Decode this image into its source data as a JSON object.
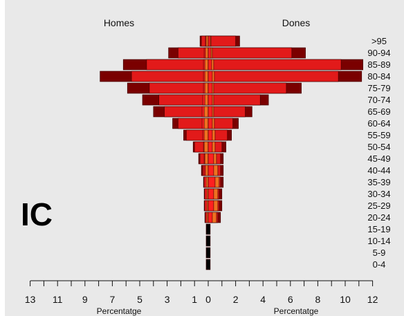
{
  "panel_label": "IC",
  "colors": {
    "background": "#e9e9e9",
    "darkest": "#7a0000",
    "dark": "#a80000",
    "red": "#e21a1a",
    "inner_red": "#ff2020",
    "orange": "#f07020",
    "black": "#000000"
  },
  "chart_data": {
    "type": "bar",
    "orientation": "horizontal-pyramid",
    "left_title": "Homes",
    "right_title": "Dones",
    "xlabel_left": "Percentatge",
    "xlabel_right": "Percentatge",
    "categories": [
      ">95",
      "90-94",
      "85-89",
      "80-84",
      "75-79",
      "70-74",
      "65-69",
      "60-64",
      "55-59",
      "50-54",
      "45-49",
      "40-44",
      "35-39",
      "30-34",
      "25-29",
      "20-24",
      "15-19",
      "10-14",
      "5-9",
      "0-4"
    ],
    "xlim": [
      -13,
      12
    ],
    "left_ticks": [
      "13",
      "11",
      "9",
      "7",
      "5",
      "3",
      "1"
    ],
    "right_ticks": [
      "0",
      "2",
      "4",
      "6",
      "8",
      "10",
      "12"
    ],
    "series_note": "Nested segments per age group; values are cumulative extents in % (left = Homes, right = Dones).",
    "homes": {
      "total": [
        0.6,
        2.9,
        6.2,
        7.9,
        5.9,
        4.8,
        4.0,
        2.6,
        1.8,
        1.1,
        0.7,
        0.5,
        0.35,
        0.3,
        0.3,
        0.25,
        0.15,
        0.15,
        0.15,
        0.15
      ],
      "dark": [
        0.5,
        2.2,
        4.5,
        5.6,
        4.3,
        3.6,
        3.2,
        2.2,
        1.6,
        1.0,
        0.6,
        0.4,
        0.3,
        0.25,
        0.25,
        0.2,
        0,
        0,
        0,
        0
      ],
      "inner": [
        0.2,
        0.3,
        0.35,
        0.35,
        0.35,
        0.4,
        0.45,
        0.45,
        0.4,
        0.35,
        0.3,
        0.3,
        0.3,
        0.25,
        0.25,
        0.2,
        0,
        0,
        0,
        0
      ],
      "orange": [
        0.15,
        0.2,
        0.25,
        0.25,
        0.25,
        0.25,
        0.3,
        0.3,
        0.3,
        0.3,
        0.25,
        0.2,
        0.15,
        0.1,
        0.1,
        0.1,
        0,
        0,
        0,
        0
      ]
    },
    "dones": {
      "total": [
        2.3,
        7.1,
        11.3,
        11.2,
        6.8,
        4.4,
        3.2,
        2.2,
        1.7,
        1.3,
        1.1,
        1.1,
        1.1,
        1.0,
        1.0,
        0.9,
        0.15,
        0.15,
        0.15,
        0.15
      ],
      "dark": [
        2.0,
        6.1,
        9.7,
        9.5,
        5.7,
        3.8,
        2.7,
        1.8,
        1.4,
        1.0,
        0.9,
        0.9,
        0.9,
        0.8,
        0.8,
        0.7,
        0,
        0,
        0,
        0
      ],
      "inner": [
        0.2,
        0.3,
        0.4,
        0.45,
        0.4,
        0.4,
        0.4,
        0.45,
        0.5,
        0.5,
        0.6,
        0.7,
        0.8,
        0.7,
        0.7,
        0.6,
        0,
        0,
        0,
        0
      ],
      "orange": [
        0.15,
        0.2,
        0.25,
        0.3,
        0.3,
        0.3,
        0.3,
        0.3,
        0.3,
        0.3,
        0.4,
        0.4,
        0.5,
        0.4,
        0.4,
        0.3,
        0,
        0,
        0,
        0
      ]
    }
  }
}
